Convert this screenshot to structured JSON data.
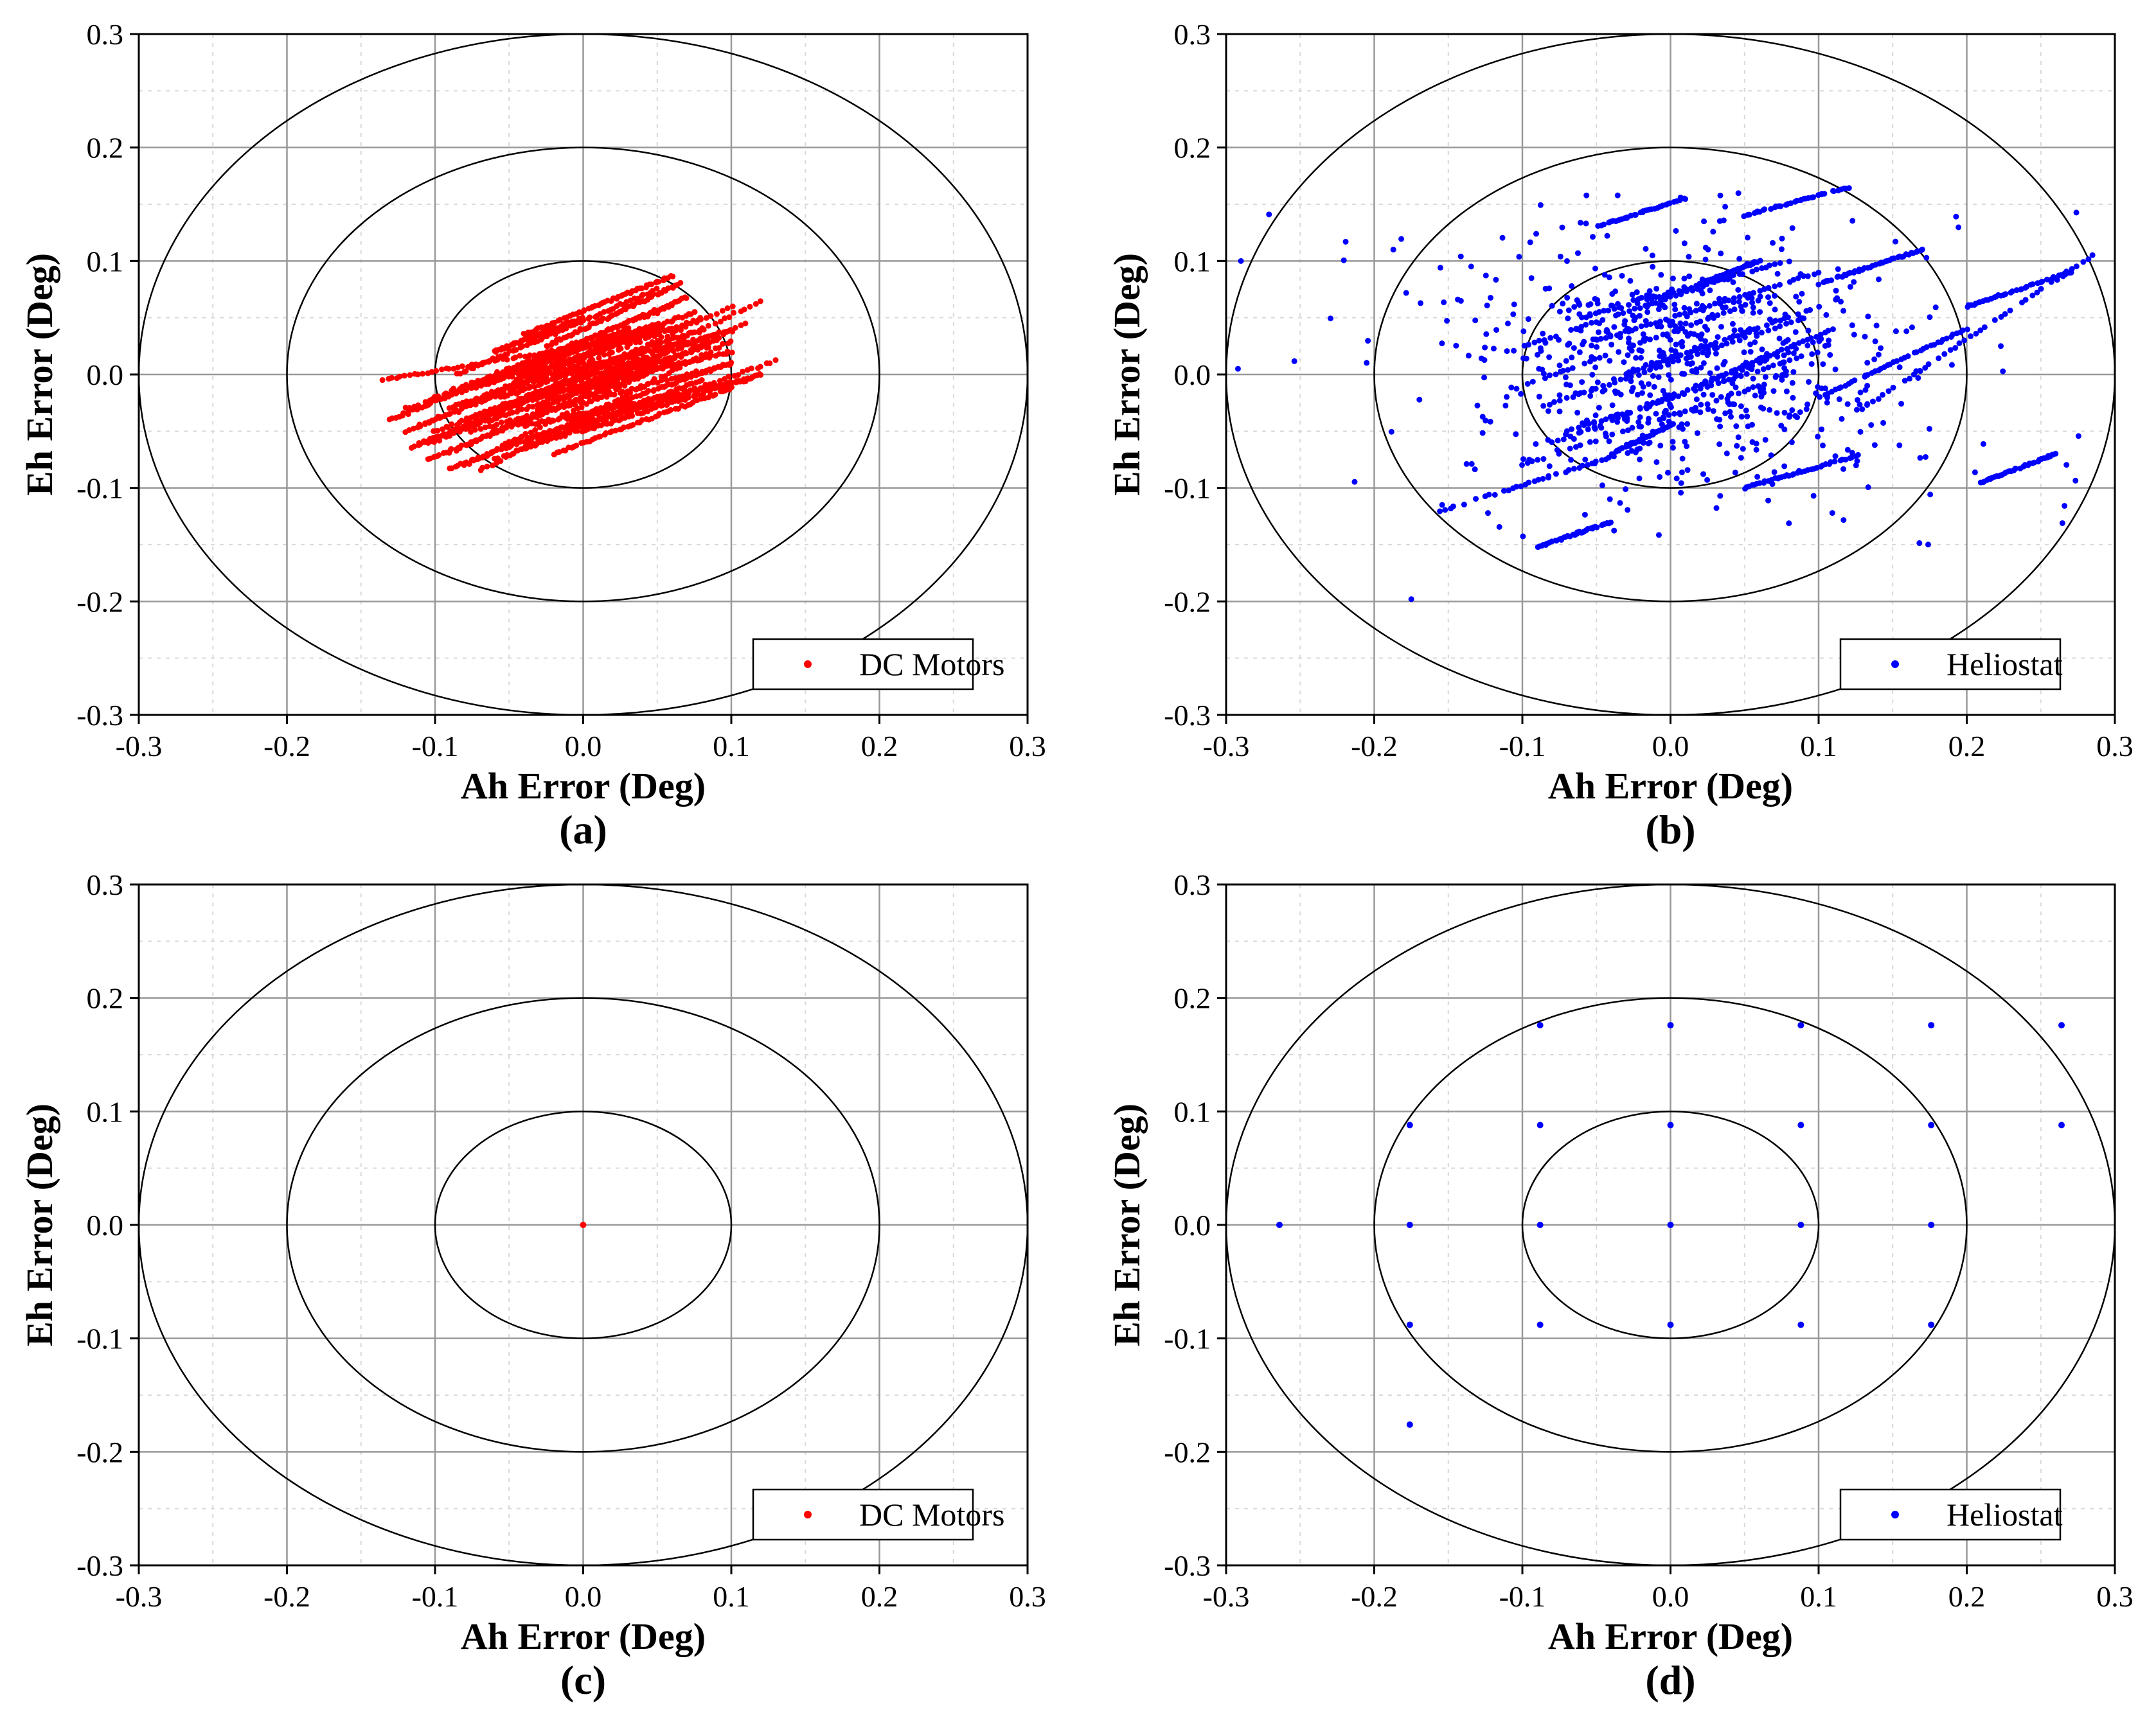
{
  "figure": {
    "panels": [
      "(a)",
      "(b)",
      "(c)",
      "(d)"
    ]
  },
  "chart_data": [
    {
      "panel": "(a)",
      "type": "scatter",
      "xlabel": "Ah Error (Deg)",
      "ylabel": "Eh Error (Deg)",
      "xlim": [
        -0.3,
        0.3
      ],
      "ylim": [
        -0.3,
        0.3
      ],
      "xticks": [
        "-0.3",
        "-0.2",
        "-0.1",
        "0.0",
        "0.1",
        "0.2",
        "0.3"
      ],
      "yticks": [
        "-0.3",
        "-0.2",
        "-0.1",
        "0.0",
        "0.1",
        "0.2",
        "0.3"
      ],
      "grid": true,
      "reference_circles": [
        0.1,
        0.2,
        0.3
      ],
      "legend": "DC Motors",
      "legend_position": "bottom-right",
      "color": "#ff0000",
      "pattern": "dense_streaks",
      "streaks": [
        [
          -0.135,
          -0.005,
          0.045,
          0.035
        ],
        [
          -0.12,
          -0.03,
          0.07,
          0.045
        ],
        [
          -0.11,
          -0.045,
          0.08,
          0.05
        ],
        [
          -0.1,
          -0.06,
          0.1,
          0.06
        ],
        [
          -0.09,
          -0.07,
          0.12,
          0.065
        ],
        [
          -0.08,
          -0.08,
          0.11,
          0.045
        ],
        [
          -0.07,
          -0.085,
          0.1,
          0.03
        ],
        [
          -0.06,
          -0.075,
          0.13,
          0.012
        ],
        [
          -0.05,
          -0.06,
          0.12,
          0.0
        ],
        [
          -0.04,
          -0.045,
          0.11,
          -0.005
        ],
        [
          -0.1,
          -0.02,
          0.06,
          0.06
        ],
        [
          -0.085,
          0.0,
          0.05,
          0.075
        ],
        [
          -0.06,
          0.02,
          0.0,
          0.05
        ],
        [
          -0.04,
          0.035,
          0.06,
          0.087
        ],
        [
          -0.02,
          0.0,
          0.09,
          0.035
        ],
        [
          -0.03,
          -0.02,
          0.1,
          0.02
        ],
        [
          -0.115,
          -0.065,
          0.0,
          0.0
        ],
        [
          -0.105,
          -0.075,
          0.02,
          -0.01
        ],
        [
          -0.09,
          -0.083,
          0.03,
          -0.025
        ],
        [
          -0.075,
          -0.05,
          0.1,
          0.01
        ],
        [
          -0.065,
          -0.035,
          0.085,
          0.025
        ],
        [
          -0.055,
          -0.02,
          0.08,
          0.04
        ],
        [
          -0.045,
          -0.005,
          0.075,
          0.055
        ],
        [
          -0.035,
          0.01,
          0.07,
          0.068
        ],
        [
          -0.025,
          0.025,
          0.065,
          0.08
        ],
        [
          -0.12,
          -0.05,
          0.03,
          0.03
        ],
        [
          -0.13,
          -0.04,
          -0.02,
          0.02
        ],
        [
          -0.01,
          -0.04,
          0.1,
          0.01
        ],
        [
          0.0,
          -0.05,
          0.12,
          0.0
        ],
        [
          -0.08,
          -0.04,
          0.04,
          0.02
        ],
        [
          -0.06,
          -0.05,
          0.06,
          0.01
        ],
        [
          -0.04,
          -0.065,
          0.08,
          -0.005
        ],
        [
          -0.02,
          -0.07,
          0.1,
          -0.012
        ],
        [
          -0.05,
          0.0,
          0.05,
          0.045
        ],
        [
          -0.07,
          -0.01,
          0.03,
          0.04
        ],
        [
          -0.09,
          -0.03,
          0.05,
          0.04
        ],
        [
          -0.03,
          -0.03,
          0.09,
          0.03
        ],
        [
          -0.015,
          -0.015,
          0.1,
          0.04
        ],
        [
          -0.1,
          -0.05,
          0.04,
          0.015
        ],
        [
          -0.11,
          -0.06,
          0.02,
          -0.005
        ]
      ]
    },
    {
      "panel": "(b)",
      "type": "scatter",
      "xlabel": "Ah Error (Deg)",
      "ylabel": "Eh Error (Deg)",
      "xlim": [
        -0.3,
        0.3
      ],
      "ylim": [
        -0.3,
        0.3
      ],
      "xticks": [
        "-0.3",
        "-0.2",
        "-0.1",
        "0.0",
        "0.1",
        "0.2",
        "0.3"
      ],
      "yticks": [
        "-0.3",
        "-0.2",
        "-0.1",
        "0.0",
        "0.1",
        "0.2",
        "0.3"
      ],
      "grid": true,
      "reference_circles": [
        0.1,
        0.2,
        0.3
      ],
      "legend": "Heliostat",
      "legend_position": "bottom-right",
      "color": "#0000ff",
      "pattern": "streaks_and_scatter",
      "streaks": [
        [
          -0.11,
          0.02,
          0.05,
          0.09
        ],
        [
          -0.1,
          -0.01,
          0.07,
          0.07
        ],
        [
          -0.09,
          -0.03,
          0.09,
          0.05
        ],
        [
          -0.08,
          -0.06,
          0.1,
          0.03
        ],
        [
          -0.1,
          -0.08,
          0.06,
          -0.01
        ],
        [
          -0.07,
          -0.05,
          0.1,
          0.02
        ],
        [
          -0.05,
          0.03,
          0.1,
          0.09
        ],
        [
          -0.03,
          0.0,
          0.1,
          0.06
        ],
        [
          -0.02,
          -0.03,
          0.11,
          0.04
        ],
        [
          -0.06,
          0.05,
          0.08,
          0.1
        ],
        [
          0.1,
          -0.02,
          0.2,
          0.04
        ],
        [
          0.13,
          -0.03,
          0.285,
          0.105
        ],
        [
          0.2,
          0.06,
          0.27,
          0.09
        ],
        [
          0.21,
          -0.095,
          0.26,
          -0.07
        ],
        [
          -0.155,
          -0.12,
          -0.02,
          -0.065
        ],
        [
          -0.09,
          -0.152,
          -0.04,
          -0.13
        ],
        [
          0.05,
          0.14,
          0.12,
          0.165
        ],
        [
          -0.05,
          0.13,
          0.01,
          0.155
        ],
        [
          0.05,
          -0.1,
          0.13,
          -0.07
        ],
        [
          -0.04,
          -0.07,
          0.0,
          -0.045
        ],
        [
          0.02,
          0.08,
          0.06,
          0.1
        ],
        [
          0.1,
          0.08,
          0.17,
          0.11
        ]
      ],
      "scatter_seed": 7,
      "scatter_count": 700
    },
    {
      "panel": "(c)",
      "type": "scatter",
      "xlabel": "Ah Error (Deg)",
      "ylabel": "Eh Error (Deg)",
      "xlim": [
        -0.3,
        0.3
      ],
      "ylim": [
        -0.3,
        0.3
      ],
      "xticks": [
        "-0.3",
        "-0.2",
        "-0.1",
        "0.0",
        "0.1",
        "0.2",
        "0.3"
      ],
      "yticks": [
        "-0.3",
        "-0.2",
        "-0.1",
        "0.0",
        "0.1",
        "0.2",
        "0.3"
      ],
      "grid": true,
      "reference_circles": [
        0.1,
        0.2,
        0.3
      ],
      "legend": "DC Motors",
      "legend_position": "bottom-right",
      "color": "#ff0000",
      "points": [
        [
          0.0,
          0.0
        ]
      ]
    },
    {
      "panel": "(d)",
      "type": "scatter",
      "xlabel": "Ah Error (Deg)",
      "ylabel": "Eh Error (Deg)",
      "xlim": [
        -0.3,
        0.3
      ],
      "ylim": [
        -0.3,
        0.3
      ],
      "xticks": [
        "-0.3",
        "-0.2",
        "-0.1",
        "0.0",
        "0.1",
        "0.2",
        "0.3"
      ],
      "yticks": [
        "-0.3",
        "-0.2",
        "-0.1",
        "0.0",
        "0.1",
        "0.2",
        "0.3"
      ],
      "grid": true,
      "reference_circles": [
        0.1,
        0.2,
        0.3
      ],
      "legend": "Heliostat",
      "legend_position": "bottom-right",
      "color": "#0000ff",
      "points": [
        [
          -0.088,
          0.176
        ],
        [
          0.0,
          0.176
        ],
        [
          0.088,
          0.176
        ],
        [
          0.176,
          0.176
        ],
        [
          0.264,
          0.176
        ],
        [
          -0.176,
          0.088
        ],
        [
          -0.088,
          0.088
        ],
        [
          0.0,
          0.088
        ],
        [
          0.088,
          0.088
        ],
        [
          0.176,
          0.088
        ],
        [
          0.264,
          0.088
        ],
        [
          -0.264,
          0.0
        ],
        [
          -0.176,
          0.0
        ],
        [
          -0.088,
          0.0
        ],
        [
          0.0,
          0.0
        ],
        [
          0.088,
          0.0
        ],
        [
          0.176,
          0.0
        ],
        [
          -0.176,
          -0.088
        ],
        [
          -0.088,
          -0.088
        ],
        [
          0.0,
          -0.088
        ],
        [
          0.088,
          -0.088
        ],
        [
          0.176,
          -0.088
        ],
        [
          -0.176,
          -0.176
        ]
      ]
    }
  ]
}
